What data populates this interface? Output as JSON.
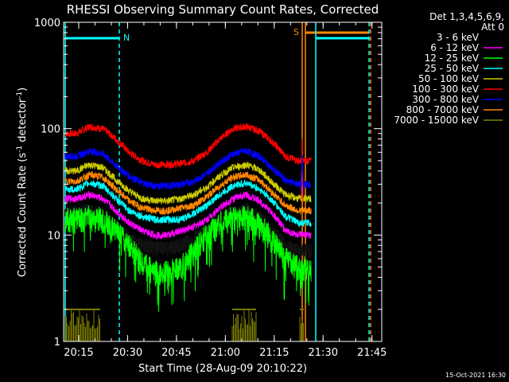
{
  "chart_data": {
    "type": "line",
    "title": "RHESSI Observing Summary Count Rates, Corrected",
    "xlabel": "Start Time (28-Aug-09 20:10:22)",
    "ylabel": "Corrected Count Rate (s",
    "ylabel_sup1": "-1",
    "ylabel_mid": " detector",
    "ylabel_sup2": "-1",
    "ylabel_end": ")",
    "yscale": "log",
    "ylim": [
      1,
      1000
    ],
    "xlim": [
      "20:10:22",
      "21:48:00"
    ],
    "x_ticks": [
      "20:15",
      "20:30",
      "20:45",
      "21:00",
      "21:15",
      "21:30",
      "21:45"
    ],
    "y_ticks": [
      "1",
      "10",
      "100",
      "1000"
    ],
    "legend": {
      "placement": "right",
      "header": [
        "Det 1,3,4,5,6,9,",
        "Att 0"
      ],
      "entries": [
        {
          "label": "3 - 6 keV",
          "color": "#000000"
        },
        {
          "label": "6 - 12 keV",
          "color": "#ff00ff"
        },
        {
          "label": "12 - 25 keV",
          "color": "#00ff00"
        },
        {
          "label": "25 - 50 keV",
          "color": "#00ffff"
        },
        {
          "label": "50 - 100 keV",
          "color": "#cccc00"
        },
        {
          "label": "100 - 300 keV",
          "color": "#ff0000"
        },
        {
          "label": "300 - 800 keV",
          "color": "#0000ff"
        },
        {
          "label": "800 - 7000 keV",
          "color": "#ff8800"
        },
        {
          "label": "7000 - 15000 keV",
          "color": "#808000"
        }
      ]
    },
    "x_minutes": [
      4,
      8,
      12,
      16,
      20,
      24,
      28,
      32,
      36,
      40,
      44,
      48,
      52,
      56,
      60,
      64,
      68,
      72,
      76
    ],
    "series": [
      {
        "name": "100 - 300 keV",
        "color": "#ff0000",
        "values": [
          90,
          105,
          100,
          80,
          60,
          50,
          46,
          46,
          47,
          50,
          60,
          80,
          100,
          105,
          95,
          75,
          55,
          50,
          50
        ]
      },
      {
        "name": "300 - 800 keV",
        "color": "#0000ff",
        "values": [
          55,
          62,
          58,
          45,
          36,
          31,
          29,
          29,
          30,
          32,
          38,
          48,
          58,
          62,
          55,
          42,
          33,
          30,
          30
        ]
      },
      {
        "name": "50 - 100 keV",
        "color": "#cccc00",
        "values": [
          40,
          46,
          43,
          33,
          26,
          22,
          21,
          21,
          22,
          24,
          28,
          36,
          43,
          46,
          41,
          31,
          24,
          22,
          22
        ]
      },
      {
        "name": "800 - 7000 keV",
        "color": "#ff8800",
        "values": [
          32,
          37,
          35,
          27,
          21,
          18,
          17,
          17,
          18,
          19,
          23,
          29,
          35,
          37,
          33,
          25,
          19,
          17,
          17
        ]
      },
      {
        "name": "25 - 50 keV",
        "color": "#00ffff",
        "values": [
          27,
          31,
          29,
          22,
          17,
          15,
          14,
          14,
          14,
          16,
          19,
          24,
          29,
          31,
          27,
          21,
          15,
          13,
          13
        ]
      },
      {
        "name": "6 - 12 keV",
        "color": "#ff00ff",
        "values": [
          22,
          24,
          22,
          17,
          13,
          11,
          10,
          10,
          11,
          12,
          14,
          18,
          22,
          24,
          21,
          16,
          11,
          10,
          10
        ]
      },
      {
        "name": "3 - 6 keV",
        "color": "#000000",
        "values": [
          16,
          17,
          16,
          12,
          9,
          8,
          7.5,
          7.5,
          8,
          9,
          11,
          14,
          16,
          17,
          15,
          11,
          8,
          7,
          7
        ]
      },
      {
        "name": "12 - 25 keV",
        "color": "#00ff00",
        "values": [
          14,
          15,
          14,
          11,
          8,
          5.5,
          4.5,
          4.5,
          5,
          7,
          10,
          13,
          15,
          15,
          13,
          9,
          6,
          5,
          5
        ]
      }
    ],
    "annotations": [
      "N",
      "S"
    ]
  },
  "footer": {
    "timestamp": "15-Oct-2021 16:30"
  }
}
